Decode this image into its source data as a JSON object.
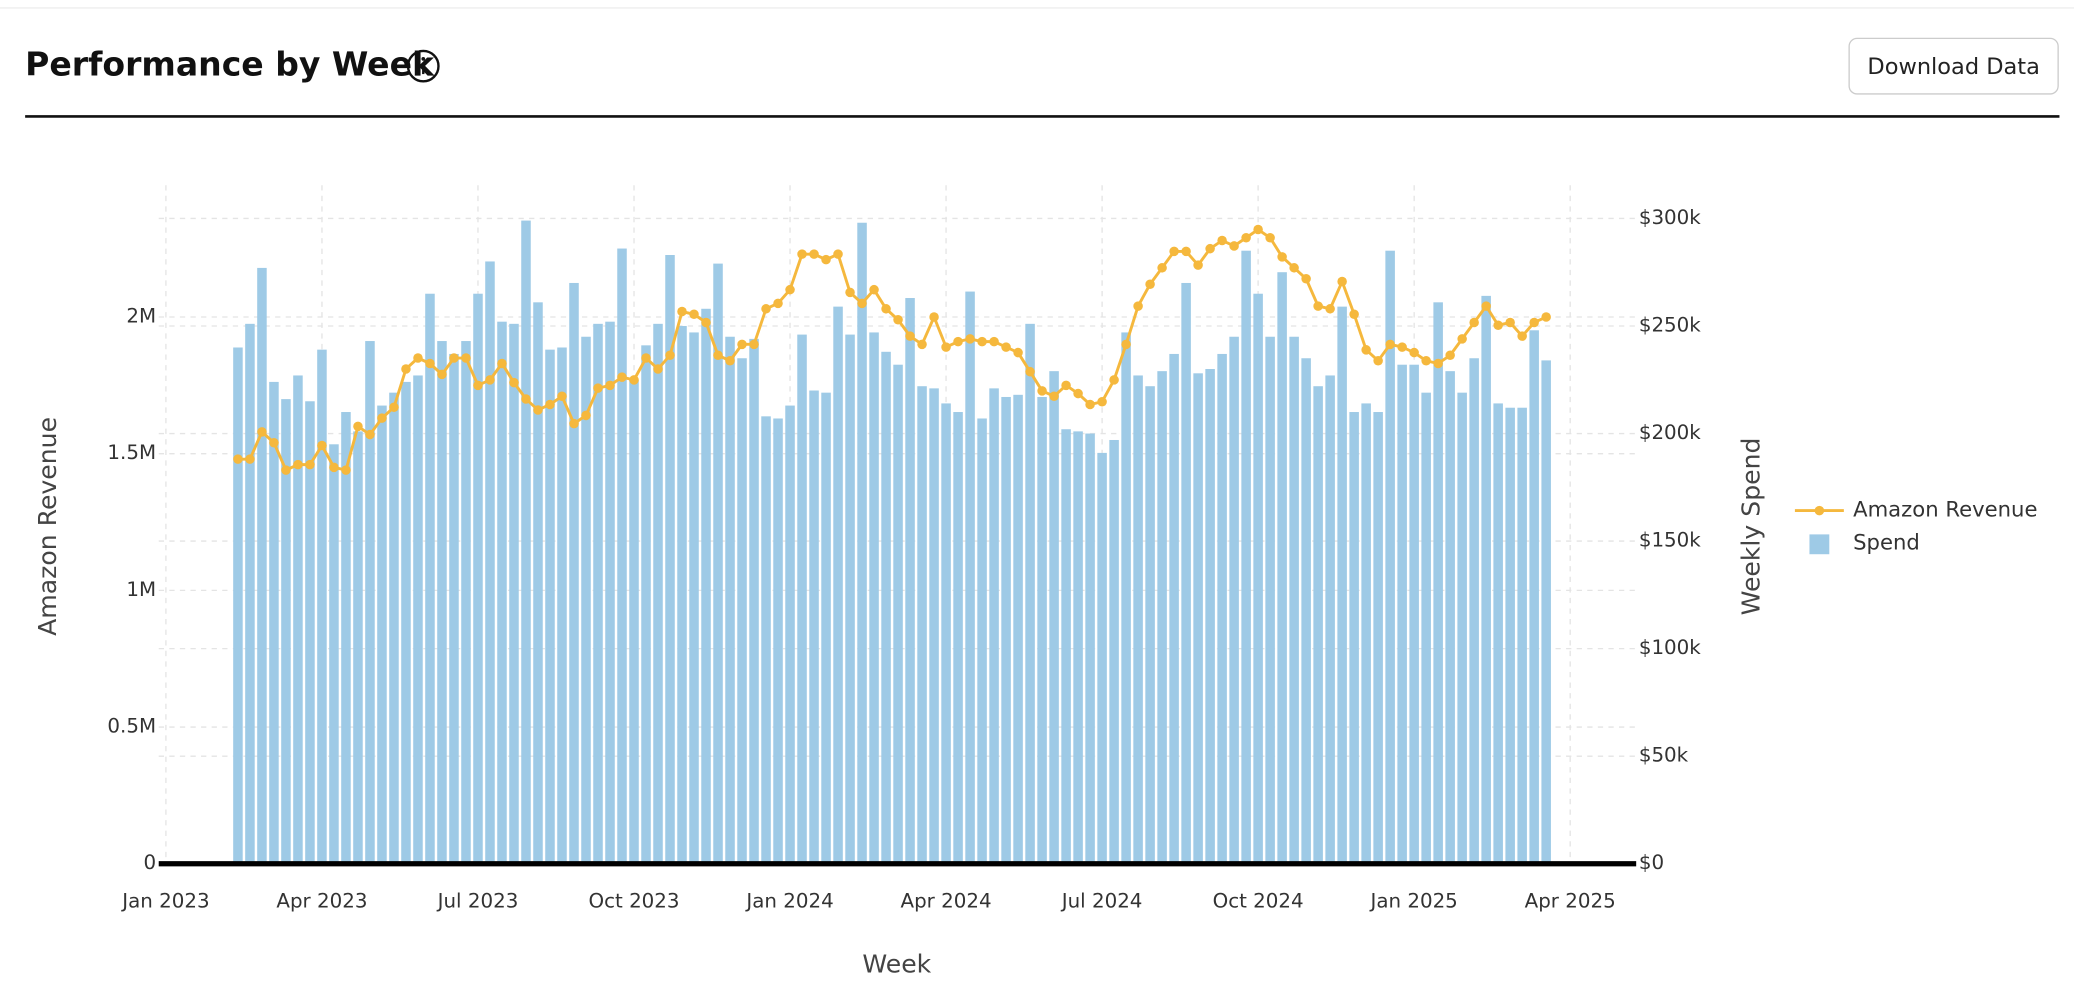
{
  "header": {
    "title": "Performance by Week",
    "button": "Download Data"
  },
  "chart_data": {
    "type": "bar",
    "x_label": "Week",
    "y_label": "Amazon Revenue",
    "y2_label": "Weekly Spend",
    "xlim": [
      -6.6,
      116.5
    ],
    "xticks": [
      {
        "value": -6,
        "label": "Jan 2023"
      },
      {
        "value": 7,
        "label": "Apr 2023"
      },
      {
        "value": 20,
        "label": "Jul 2023"
      },
      {
        "value": 33,
        "label": "Oct 2023"
      },
      {
        "value": 46,
        "label": "Jan 2024"
      },
      {
        "value": 59,
        "label": "Apr 2024"
      },
      {
        "value": 72,
        "label": "Jul 2024"
      },
      {
        "value": 85,
        "label": "Oct 2024"
      },
      {
        "value": 98,
        "label": "Jan 2025"
      },
      {
        "value": 111,
        "label": "Apr 2025"
      }
    ],
    "ylim": [
      0,
      2.4
    ],
    "yticks": [
      0,
      {
        "value": 0.5,
        "label": "0.5M"
      },
      {
        "value": 1,
        "label": "1M"
      },
      {
        "value": 1.5,
        "label": "1.5M"
      },
      {
        "value": 2,
        "label": "2M"
      }
    ],
    "y2lim": [
      0,
      305
    ],
    "y2ticks": [
      {
        "value": 0,
        "label": "$0"
      },
      {
        "value": 50,
        "label": "$50k"
      },
      {
        "value": 100,
        "label": "$100k"
      },
      {
        "value": 150,
        "label": "$150k"
      },
      {
        "value": 200,
        "label": "$200k"
      },
      {
        "value": 250,
        "label": "$250k"
      },
      {
        "value": 300,
        "label": "$300k"
      }
    ],
    "grid": true,
    "legend": "right",
    "series": [
      {
        "name": "Amazon Revenue",
        "type": "line",
        "color": "#f5b83d",
        "values": [
          1.48,
          1.48,
          1.58,
          1.54,
          1.44,
          1.46,
          1.46,
          1.53,
          1.45,
          1.44,
          1.6,
          1.57,
          1.63,
          1.67,
          1.81,
          1.85,
          1.83,
          1.79,
          1.85,
          1.85,
          1.75,
          1.77,
          1.83,
          1.76,
          1.7,
          1.66,
          1.68,
          1.71,
          1.61,
          1.64,
          1.74,
          1.75,
          1.78,
          1.77,
          1.85,
          1.81,
          1.86,
          2.02,
          2.01,
          1.98,
          1.86,
          1.84,
          1.9,
          1.9,
          2.03,
          2.05,
          2.1,
          2.23,
          2.23,
          2.21,
          2.23,
          2.09,
          2.05,
          2.1,
          2.03,
          1.99,
          1.93,
          1.9,
          2.0,
          1.89,
          1.91,
          1.92,
          1.91,
          1.91,
          1.89,
          1.87,
          1.8,
          1.73,
          1.71,
          1.75,
          1.72,
          1.68,
          1.69,
          1.77,
          1.9,
          2.04,
          2.12,
          2.18,
          2.24,
          2.24,
          2.19,
          2.25,
          2.28,
          2.26,
          2.29,
          2.32,
          2.29,
          2.22,
          2.18,
          2.14,
          2.04,
          2.03,
          2.13,
          2.01,
          1.88,
          1.84,
          1.9,
          1.89,
          1.87,
          1.84,
          1.83,
          1.86,
          1.92,
          1.98,
          2.04,
          1.97,
          1.98,
          1.93,
          1.98,
          2.0
        ]
      },
      {
        "name": "Spend",
        "type": "bar",
        "axis": "y2",
        "color": "#9ecae6",
        "values": [
          240,
          251,
          277,
          224,
          216,
          227,
          215,
          239,
          195,
          210,
          201,
          243,
          213,
          219,
          224,
          227,
          265,
          243,
          237,
          243,
          265,
          280,
          252,
          251,
          299,
          261,
          239,
          240,
          270,
          245,
          251,
          252,
          286,
          225,
          241,
          251,
          283,
          250,
          247,
          258,
          279,
          245,
          235,
          244,
          208,
          207,
          213,
          246,
          220,
          219,
          259,
          246,
          298,
          247,
          238,
          232,
          263,
          222,
          221,
          214,
          210,
          266,
          207,
          221,
          217,
          218,
          251,
          217,
          229,
          202,
          201,
          200,
          191,
          197,
          247,
          227,
          222,
          229,
          237,
          270,
          228,
          230,
          237,
          245,
          285,
          265,
          245,
          275,
          245,
          235,
          222,
          227,
          259,
          210,
          214,
          210,
          285,
          232,
          232,
          219,
          261,
          229,
          219,
          235,
          264,
          214,
          212,
          212,
          248,
          234
        ]
      }
    ]
  }
}
